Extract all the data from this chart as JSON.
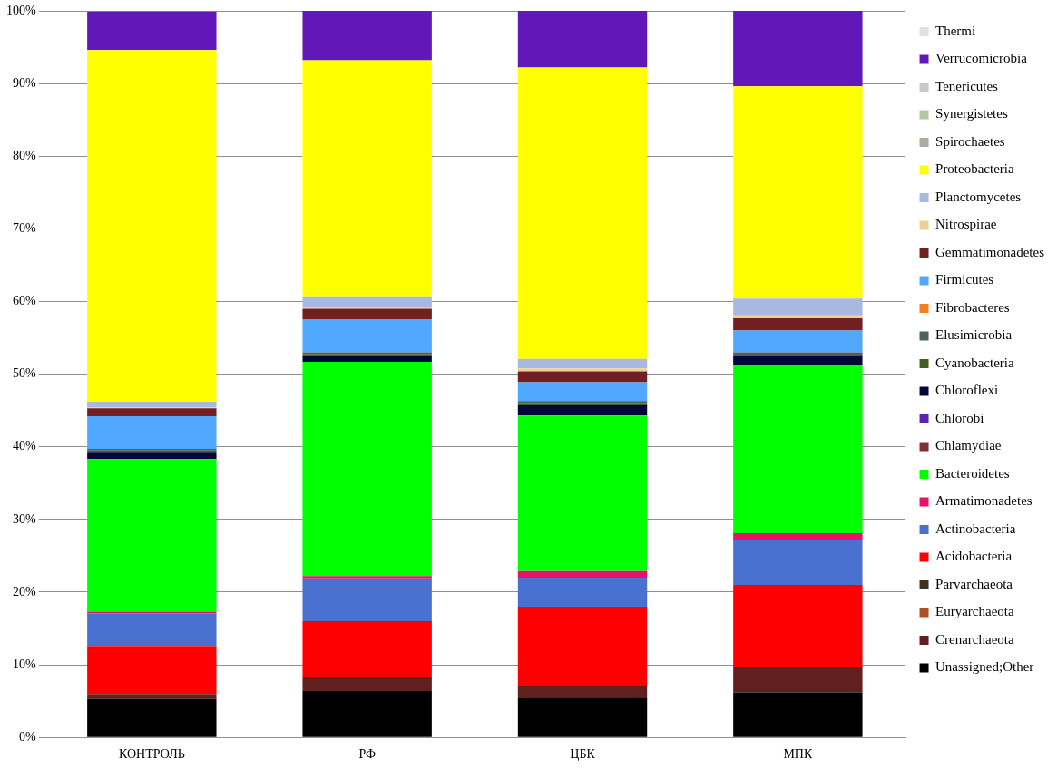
{
  "chart_data": {
    "type": "bar",
    "stacked": true,
    "categories": [
      "КОНТРОЛЬ",
      "РФ",
      "ЦБК",
      "МПК"
    ],
    "ylim": [
      0,
      100
    ],
    "yticks": [
      {
        "value": 0,
        "label": "0%"
      },
      {
        "value": 10,
        "label": "10%"
      },
      {
        "value": 20,
        "label": "20%"
      },
      {
        "value": 30,
        "label": "30%"
      },
      {
        "value": 40,
        "label": "40%"
      },
      {
        "value": 50,
        "label": "50%"
      },
      {
        "value": 60,
        "label": "60%"
      },
      {
        "value": 70,
        "label": "70%"
      },
      {
        "value": 80,
        "label": "80%"
      },
      {
        "value": 90,
        "label": "90%"
      },
      {
        "value": 100,
        "label": "100%"
      }
    ],
    "grid": "y",
    "legend": "right",
    "series": [
      {
        "name": "Unassigned;Other",
        "color": "#000000",
        "values": [
          5.3,
          6.4,
          5.4,
          6.2
        ]
      },
      {
        "name": "Crenarchaeota",
        "color": "#602020",
        "values": [
          0.7,
          2.0,
          1.7,
          3.5
        ]
      },
      {
        "name": "Euryarchaeota",
        "color": "#b05020",
        "values": [
          0,
          0,
          0,
          0
        ]
      },
      {
        "name": "Parvarchaeota",
        "color": "#403020",
        "values": [
          0,
          0,
          0,
          0
        ]
      },
      {
        "name": "Acidobacteria",
        "color": "#ff0000",
        "values": [
          6.6,
          7.6,
          10.9,
          11.3
        ]
      },
      {
        "name": "Actinobacteria",
        "color": "#4a70d0",
        "values": [
          4.5,
          5.9,
          4.0,
          6.1
        ]
      },
      {
        "name": "Armatimonadetes",
        "color": "#e8106a",
        "values": [
          0.2,
          0.3,
          0.9,
          1.0
        ]
      },
      {
        "name": "Bacteroidetes",
        "color": "#00ff00",
        "values": [
          21.0,
          29.5,
          21.4,
          23.2
        ]
      },
      {
        "name": "Chlamydiae",
        "color": "#803030",
        "values": [
          0,
          0,
          0,
          0
        ]
      },
      {
        "name": "Chlorobi",
        "color": "#6020b0",
        "values": [
          0,
          0,
          0,
          0
        ]
      },
      {
        "name": "Chloroflexi",
        "color": "#000838",
        "values": [
          1.0,
          0.8,
          1.4,
          1.2
        ]
      },
      {
        "name": "Cyanobacteria",
        "color": "#406020",
        "values": [
          0.2,
          0.3,
          0.3,
          0.2
        ]
      },
      {
        "name": "Elusimicrobia",
        "color": "#506060",
        "values": [
          0.2,
          0.2,
          0.3,
          0.3
        ]
      },
      {
        "name": "Fibrobacteres",
        "color": "#f08020",
        "values": [
          0,
          0,
          0,
          0
        ]
      },
      {
        "name": "Firmicutes",
        "color": "#50a8ff",
        "values": [
          4.5,
          4.5,
          2.6,
          3.0
        ]
      },
      {
        "name": "Gemmatimonadetes",
        "color": "#702020",
        "values": [
          1.1,
          1.5,
          1.5,
          1.7
        ]
      },
      {
        "name": "Nitrospirae",
        "color": "#f0d090",
        "values": [
          0.1,
          0.2,
          0.4,
          0.4
        ]
      },
      {
        "name": "Planctomycetes",
        "color": "#a8b8e0",
        "values": [
          0.8,
          1.5,
          1.3,
          2.3
        ]
      },
      {
        "name": "Proteobacteria",
        "color": "#ffff00",
        "values": [
          48.4,
          32.5,
          40.1,
          29.2
        ]
      },
      {
        "name": "Spirochaetes",
        "color": "#b0a8a0",
        "values": [
          0,
          0,
          0,
          0
        ]
      },
      {
        "name": "Synergistetes",
        "color": "#b4c8a0",
        "values": [
          0,
          0,
          0,
          0
        ]
      },
      {
        "name": "Tenericutes",
        "color": "#c8c8c8",
        "values": [
          0,
          0,
          0,
          0
        ]
      },
      {
        "name": "Verrucomicrobia",
        "color": "#6218b8",
        "values": [
          5.3,
          6.8,
          7.8,
          10.4
        ]
      },
      {
        "name": "Thermi",
        "color": "#e0e0e0",
        "values": [
          0,
          0,
          0,
          0
        ]
      }
    ]
  }
}
